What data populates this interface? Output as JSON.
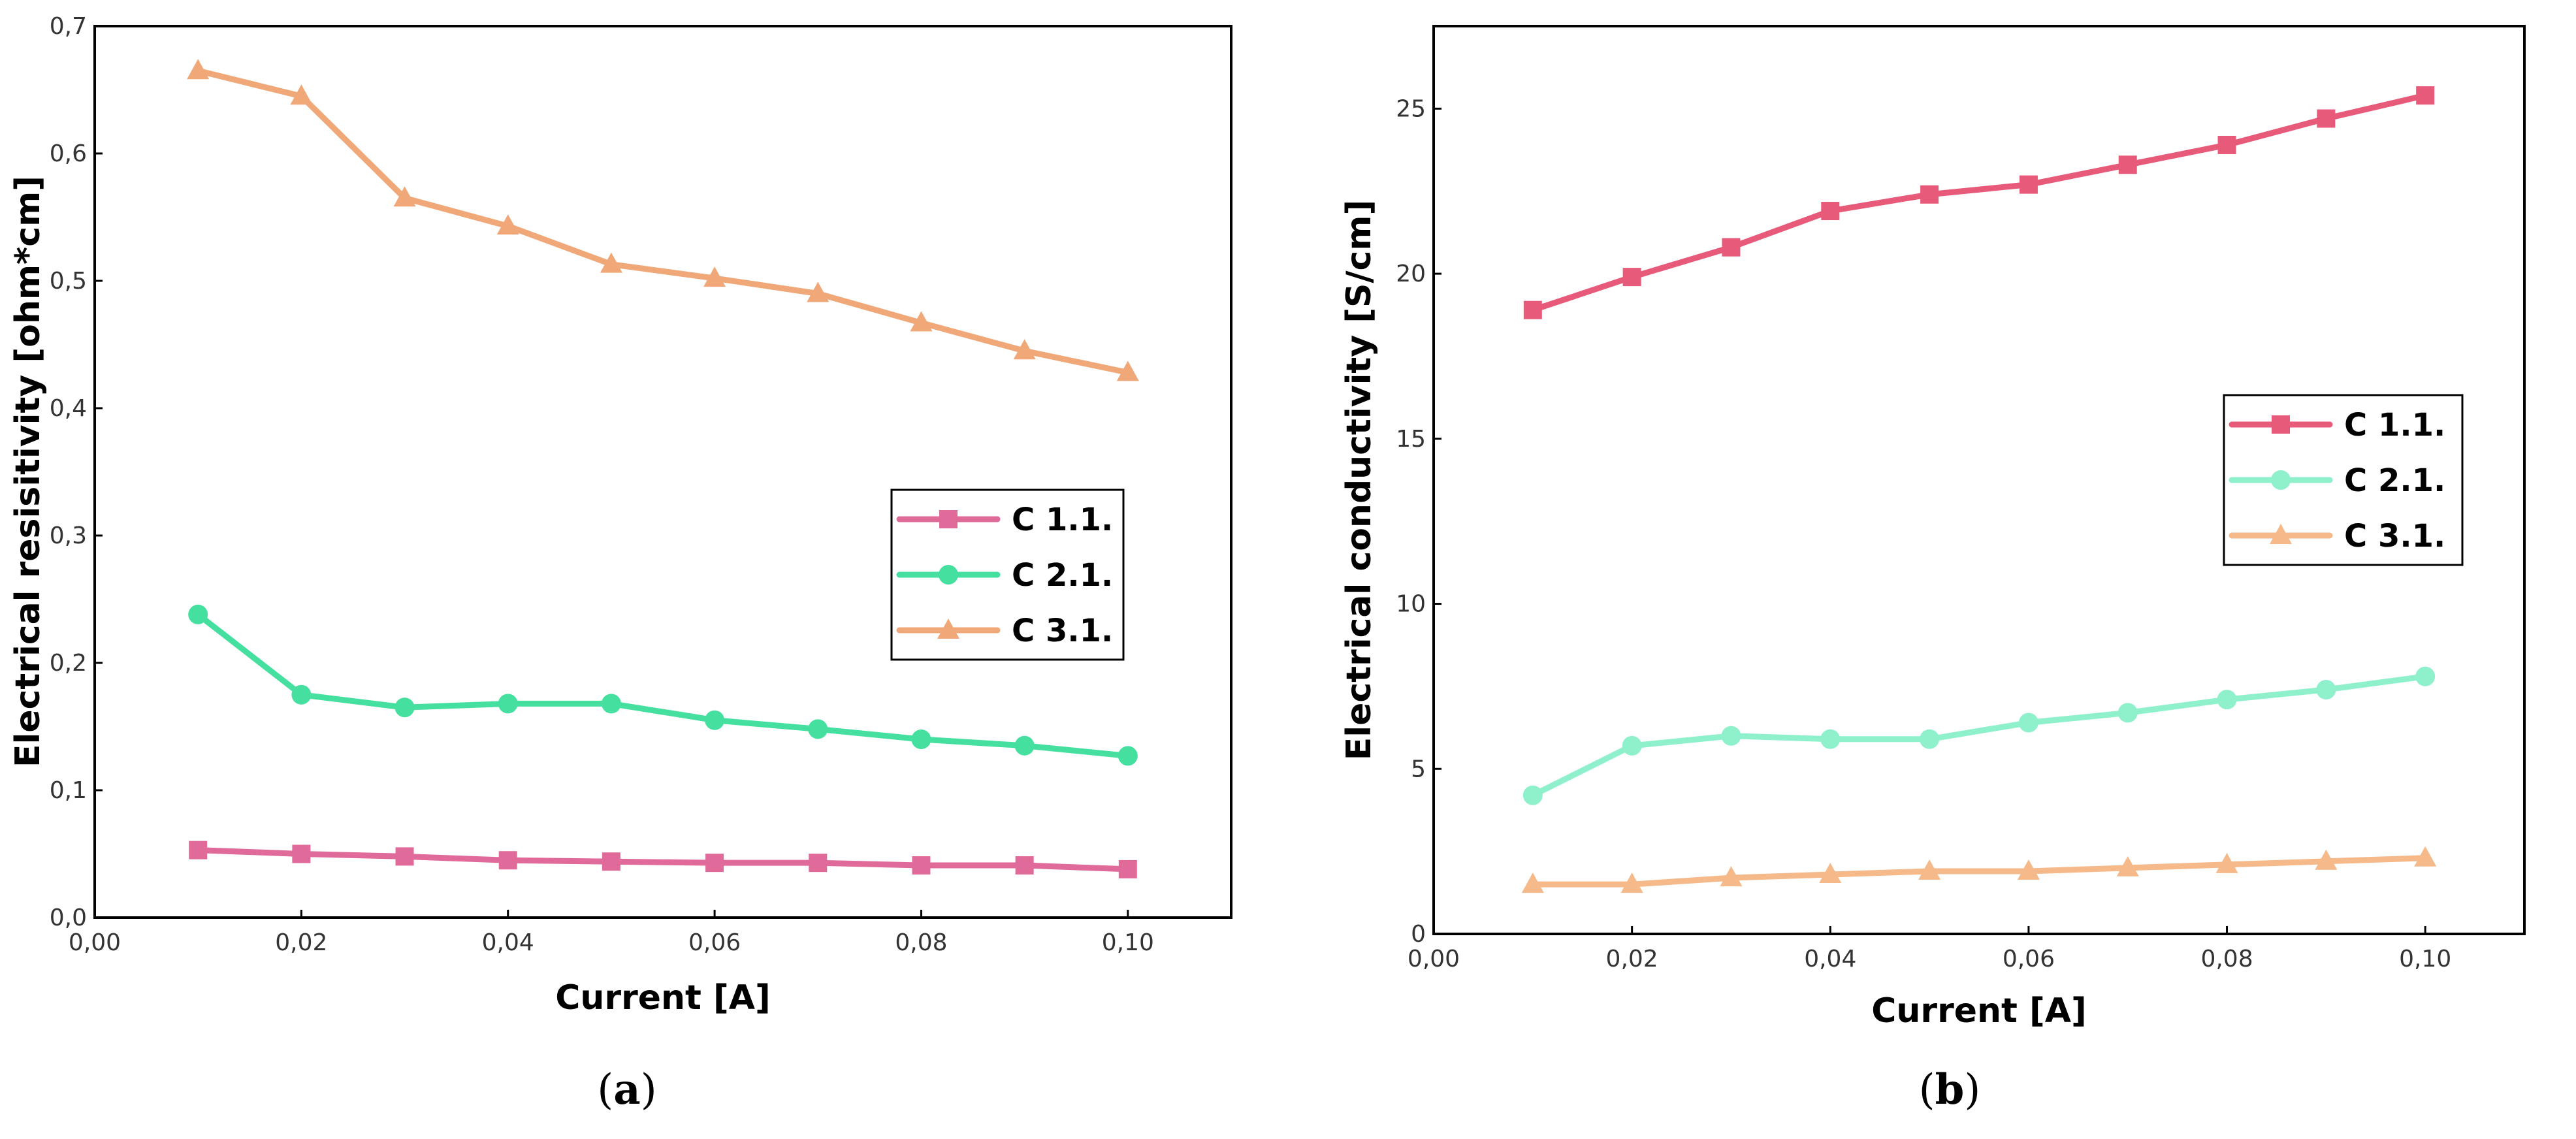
{
  "chart_data": [
    {
      "type": "line",
      "panel_label": "a",
      "xlabel": "Current [A]",
      "ylabel": "Electrical resisitivity [ohm*cm]",
      "xlim": [
        0,
        0.11
      ],
      "ylim": [
        0,
        0.7
      ],
      "xticks": [
        "0,00",
        "0,02",
        "0,04",
        "0,06",
        "0,08",
        "0,10"
      ],
      "yticks": [
        "0,0",
        "0,1",
        "0,2",
        "0,3",
        "0,4",
        "0,5",
        "0,6",
        "0,7"
      ],
      "legend_position": "center-right",
      "x": [
        0.01,
        0.02,
        0.03,
        0.04,
        0.05,
        0.06,
        0.07,
        0.08,
        0.09,
        0.1
      ],
      "series": [
        {
          "name": "C 1.1.",
          "color": "#e06a9a",
          "marker": "square",
          "values": [
            0.053,
            0.05,
            0.048,
            0.045,
            0.044,
            0.043,
            0.043,
            0.041,
            0.041,
            0.038
          ]
        },
        {
          "name": "C 2.1.",
          "color": "#45e0a0",
          "marker": "circle",
          "values": [
            0.238,
            0.175,
            0.165,
            0.168,
            0.168,
            0.155,
            0.148,
            0.14,
            0.135,
            0.127
          ]
        },
        {
          "name": "C 3.1.",
          "color": "#f0a878",
          "marker": "triangle",
          "values": [
            0.665,
            0.645,
            0.565,
            0.543,
            0.513,
            0.502,
            0.49,
            0.467,
            0.445,
            0.428
          ]
        }
      ]
    },
    {
      "type": "line",
      "panel_label": "b",
      "xlabel": "Current [A]",
      "ylabel": "Electrical conductivity [S/cm]",
      "xlim": [
        0,
        0.11
      ],
      "ylim": [
        0,
        27.5
      ],
      "xticks": [
        "0,00",
        "0,02",
        "0,04",
        "0,06",
        "0,08",
        "0,10"
      ],
      "yticks": [
        "0",
        "5",
        "10",
        "15",
        "20",
        "25"
      ],
      "legend_position": "center-right",
      "x": [
        0.01,
        0.02,
        0.03,
        0.04,
        0.05,
        0.06,
        0.07,
        0.08,
        0.09,
        0.1
      ],
      "series": [
        {
          "name": "C 1.1.",
          "color": "#e85a7a",
          "marker": "square",
          "values": [
            18.9,
            19.9,
            20.8,
            21.9,
            22.4,
            22.7,
            23.3,
            23.9,
            24.7,
            25.4
          ]
        },
        {
          "name": "C 2.1.",
          "color": "#8ff0cc",
          "marker": "circle",
          "values": [
            4.2,
            5.7,
            6.0,
            5.9,
            5.9,
            6.4,
            6.7,
            7.1,
            7.4,
            7.8
          ]
        },
        {
          "name": "C 3.1.",
          "color": "#f5b98a",
          "marker": "triangle",
          "values": [
            1.5,
            1.5,
            1.7,
            1.8,
            1.9,
            1.9,
            2.0,
            2.1,
            2.2,
            2.3
          ]
        }
      ]
    }
  ]
}
